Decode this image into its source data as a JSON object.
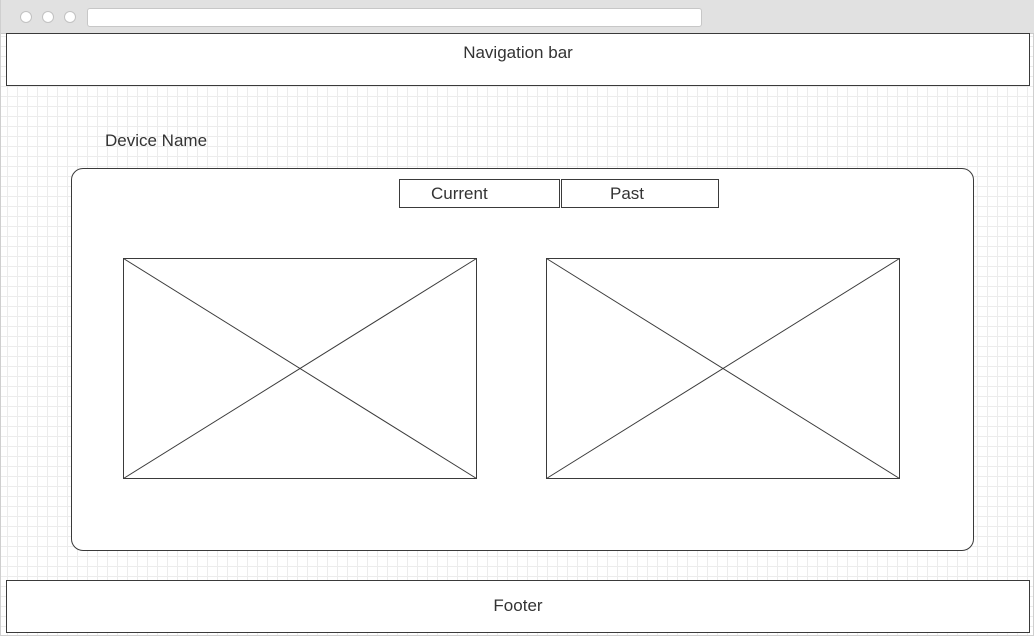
{
  "window": {
    "controls": [
      "close-icon",
      "minimize-icon",
      "maximize-icon"
    ],
    "address_bar": ""
  },
  "navbar": {
    "label": "Navigation bar"
  },
  "device": {
    "name_label": "Device Name"
  },
  "tabs": [
    {
      "label": "Current"
    },
    {
      "label": "Past"
    }
  ],
  "images": [
    {
      "icon": "image-placeholder-icon"
    },
    {
      "icon": "image-placeholder-icon"
    }
  ],
  "footer": {
    "label": "Footer"
  },
  "colors": {
    "border": "#3a3a3a",
    "text": "#333333",
    "titlebar": "#e1e1e1",
    "grid": "#ececec"
  }
}
